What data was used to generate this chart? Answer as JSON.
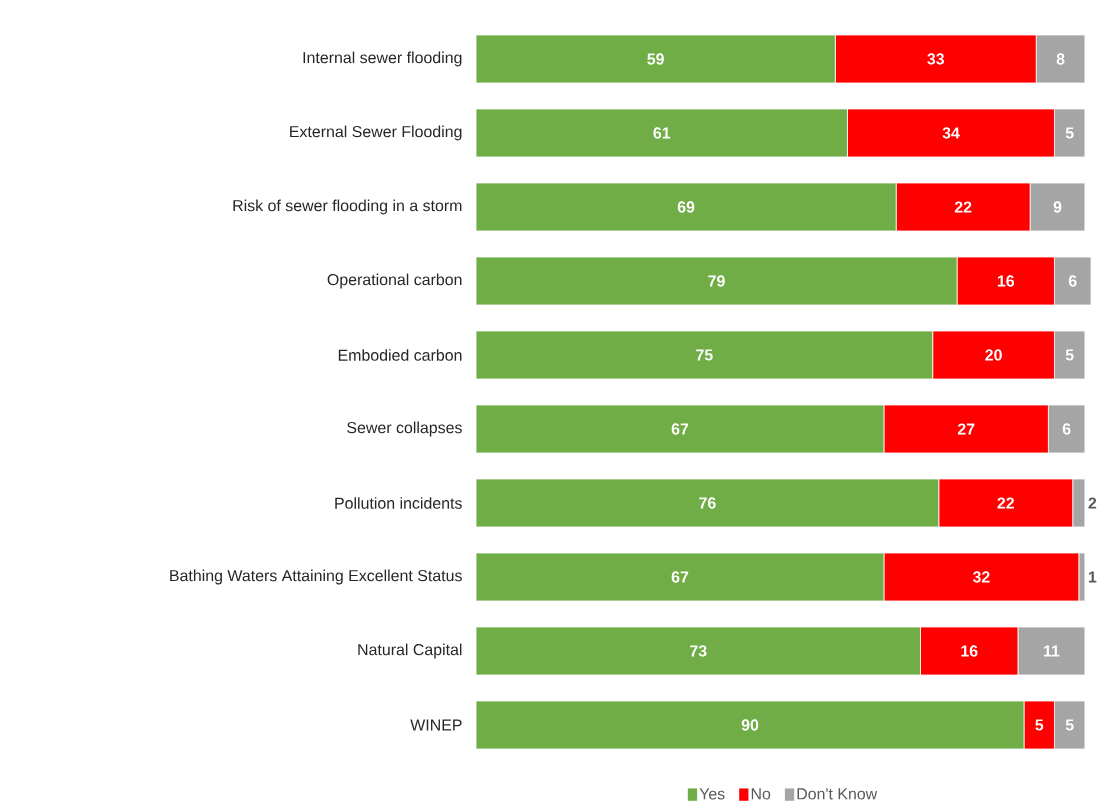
{
  "chart_data": {
    "type": "bar",
    "orientation": "horizontal",
    "stacked": true,
    "data_labels": true,
    "legend": "bottom",
    "tick_labels": "y",
    "categories": [
      "Internal sewer flooding",
      "External Sewer Flooding",
      "Risk of sewer flooding in a storm",
      "Operational carbon",
      "Embodied carbon",
      "Sewer collapses",
      "Pollution incidents",
      "Bathing Waters Attaining Excellent Status",
      "Natural Capital",
      "WINEP"
    ],
    "series": [
      {
        "name": "Yes",
        "color": "#70ad47",
        "values": [
          59,
          61,
          69,
          79,
          75,
          67,
          76,
          67,
          73,
          90
        ]
      },
      {
        "name": "No",
        "color": "#ff0000",
        "values": [
          33,
          34,
          22,
          16,
          20,
          27,
          22,
          32,
          16,
          5
        ]
      },
      {
        "name": "Don't Know",
        "color": "#a5a5a5",
        "values": [
          8,
          5,
          9,
          6,
          5,
          6,
          2,
          1,
          11,
          5
        ]
      }
    ]
  }
}
